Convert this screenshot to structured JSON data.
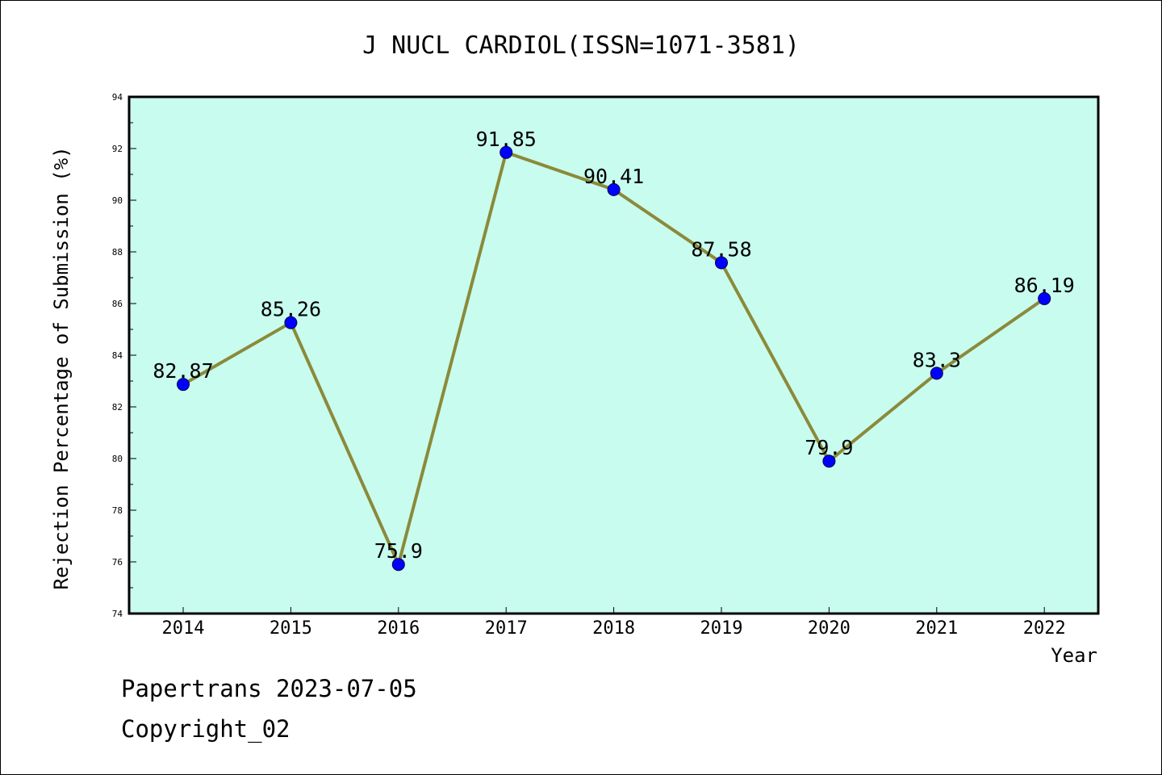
{
  "chart_data": {
    "type": "line",
    "title": "J NUCL CARDIOL(ISSN=1071-3581)",
    "xlabel": "Year",
    "ylabel": "Rejection Percentage of Submission (%)",
    "categories": [
      "2014",
      "2015",
      "2016",
      "2017",
      "2018",
      "2019",
      "2020",
      "2021",
      "2022"
    ],
    "values": [
      82.87,
      85.26,
      75.9,
      91.85,
      90.41,
      87.58,
      79.9,
      83.3,
      86.19
    ],
    "data_labels": [
      "82.87",
      "85.26",
      "75.9",
      "91.85",
      "90.41",
      "87.58",
      "79.9",
      "83.3",
      "86.19"
    ],
    "ylim": [
      74,
      94
    ],
    "yticks": [
      74,
      76,
      78,
      80,
      82,
      84,
      86,
      88,
      90,
      92,
      94
    ],
    "grid": false,
    "colors": {
      "plot_background": "#c8fcee",
      "line": "#8b8a3a",
      "marker": "#0000ff"
    }
  },
  "footer": {
    "line1": "Papertrans 2023-07-05",
    "line2": "Copyright_02"
  }
}
